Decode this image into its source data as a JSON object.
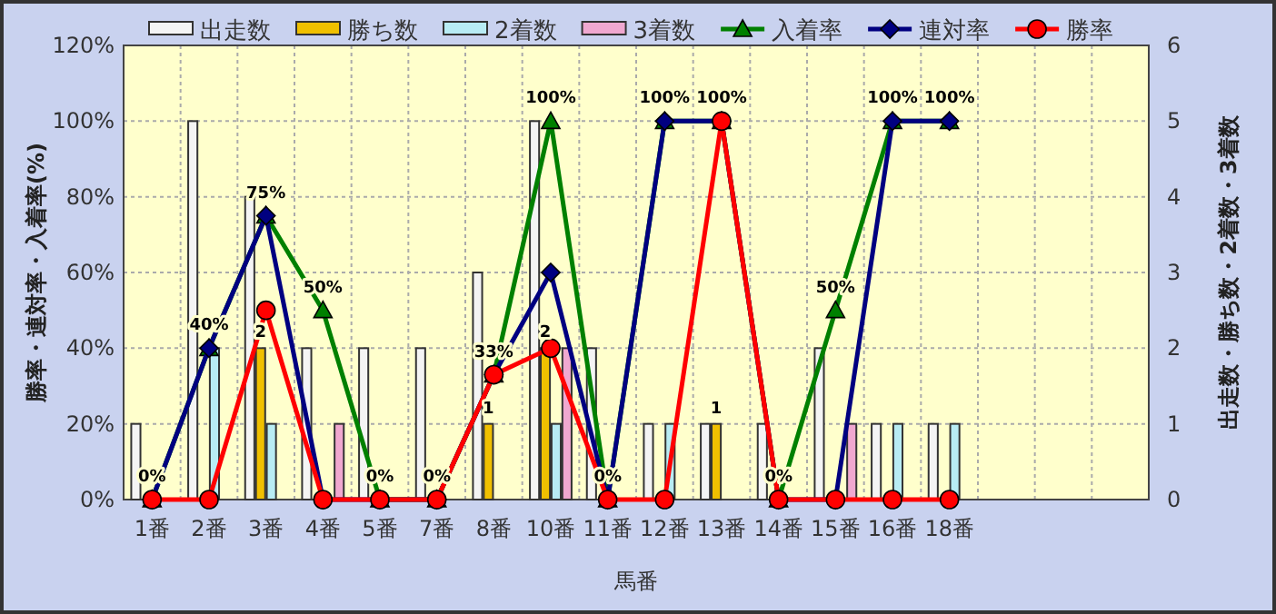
{
  "chart_data": {
    "type": "bar",
    "xlabel": "馬番",
    "ylabel": "勝率・連対率・入着率(%)",
    "y2label": "出走数・勝ち数・2着数・3着数",
    "categories": [
      "1番",
      "2番",
      "3番",
      "4番",
      "5番",
      "7番",
      "8番",
      "10番",
      "11番",
      "12番",
      "13番",
      "14番",
      "15番",
      "16番",
      "18番",
      null,
      null,
      null
    ],
    "series": [
      {
        "name": "出走数",
        "axis": "y2",
        "color": "#f4f4f4",
        "values": [
          1,
          5,
          4,
          2,
          2,
          2,
          3,
          5,
          2,
          1,
          1,
          1,
          2,
          1,
          1,
          null,
          null,
          null
        ]
      },
      {
        "name": "勝ち数",
        "axis": "y2",
        "color": "#f0c000",
        "values": [
          0,
          0,
          2,
          0,
          0,
          0,
          1,
          2,
          0,
          0,
          1,
          0,
          0,
          0,
          0,
          null,
          null,
          null
        ],
        "value_labels": [
          null,
          null,
          "2",
          null,
          null,
          null,
          "1",
          "2",
          null,
          null,
          "1",
          null,
          null,
          null,
          null,
          null,
          null,
          null
        ]
      },
      {
        "name": "2着数",
        "axis": "y2",
        "color": "#b8ecf4",
        "values": [
          0,
          2,
          1,
          0,
          0,
          0,
          0,
          1,
          0,
          1,
          0,
          0,
          0,
          1,
          1,
          null,
          null,
          null
        ]
      },
      {
        "name": "3着数",
        "axis": "y2",
        "color": "#f0a8d0",
        "values": [
          0,
          0,
          0,
          1,
          0,
          0,
          0,
          2,
          0,
          0,
          0,
          0,
          1,
          0,
          0,
          null,
          null,
          null
        ]
      },
      {
        "name": "入着率",
        "type": "line",
        "marker": "triangle",
        "color": "#008000",
        "values": [
          0,
          40,
          75,
          50,
          0,
          0,
          33,
          100,
          0,
          100,
          100,
          0,
          50,
          100,
          100,
          null,
          null,
          null
        ],
        "value_labels": [
          "0%",
          "40%",
          "75%",
          "50%",
          "0%",
          "0%",
          "33%",
          "100%",
          "0%",
          "100%",
          "100%",
          "0%",
          "50%",
          "100%",
          "100%",
          null,
          null,
          null
        ]
      },
      {
        "name": "連対率",
        "type": "line",
        "marker": "diamond",
        "color": "#000080",
        "values": [
          0,
          40,
          75,
          0,
          0,
          0,
          33,
          60,
          0,
          100,
          100,
          0,
          0,
          100,
          100,
          null,
          null,
          null
        ]
      },
      {
        "name": "勝率",
        "type": "line",
        "marker": "circle",
        "color": "#ff0000",
        "values": [
          0,
          0,
          50,
          0,
          0,
          0,
          33,
          40,
          0,
          0,
          100,
          0,
          0,
          0,
          0,
          null,
          null,
          null
        ]
      }
    ],
    "ylim": [
      0,
      120
    ],
    "yticks": [
      {
        "value": 0,
        "label": "0%"
      },
      {
        "value": 20,
        "label": "20%"
      },
      {
        "value": 40,
        "label": "40%"
      },
      {
        "value": 60,
        "label": "60%"
      },
      {
        "value": 80,
        "label": "80%"
      },
      {
        "value": 100,
        "label": "100%"
      },
      {
        "value": 120,
        "label": "120%"
      }
    ],
    "y2lim": [
      0,
      6
    ],
    "y2ticks": [
      0,
      1,
      2,
      3,
      4,
      5,
      6
    ],
    "grid": true,
    "legend": "top"
  }
}
